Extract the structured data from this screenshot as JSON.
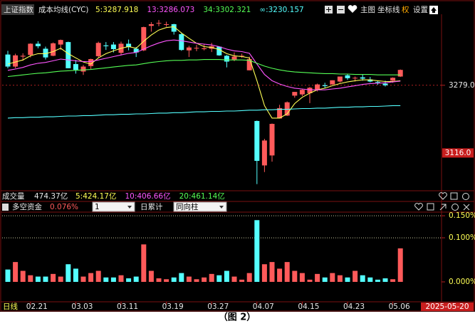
{
  "toolbar": {
    "symbol": "上证指数",
    "indicator": "成本均线(CYC)",
    "buttons": [
      "主图",
      "坐标线",
      "权",
      "设置"
    ]
  },
  "volume_header": {
    "title": "成交量",
    "total": "474.37亿",
    "averages": [
      {
        "label": "5:424.17亿",
        "color": "#ffff55"
      },
      {
        "label": "10:406.66亿",
        "color": "#ff55ff"
      },
      {
        "label": "20:461.14亿",
        "color": "#55ff55"
      }
    ]
  },
  "indicator_header": {
    "title": "多空资金",
    "value": "0.076%",
    "selects": [
      "1",
      "同向柱"
    ],
    "mode": "日累计"
  },
  "date_axis": {
    "period": "日线",
    "cursor_date": "2025-05-20"
  },
  "caption": "（图 2）",
  "chart_data": [
    {
      "type": "candlestick",
      "categories": [
        null,
        null,
        null,
        "02.21",
        null,
        null,
        null,
        null,
        null,
        "03.03",
        null,
        null,
        null,
        null,
        null,
        "03.11",
        null,
        null,
        null,
        null,
        null,
        "03.19",
        null,
        null,
        null,
        null,
        null,
        "03.27",
        null,
        null,
        null,
        null,
        null,
        "04.07",
        null,
        null,
        null,
        null,
        null,
        "04.15",
        null,
        null,
        null,
        null,
        null,
        "04.23",
        null,
        null,
        null,
        null,
        null,
        "05.06",
        null
      ],
      "open": [
        3353,
        3324,
        3348,
        3352,
        3379,
        3367,
        3350,
        3377,
        3383,
        3330,
        3312,
        3325,
        3349,
        3375,
        3377,
        3357,
        3379,
        3367,
        3363,
        3422,
        3428,
        3425,
        3426,
        3402,
        3363,
        3369,
        3366,
        3367,
        3372,
        3350,
        3341,
        3350,
        3315,
        3193,
        3086,
        3110,
        3199,
        3206,
        3254,
        3257,
        3260,
        3268,
        3279,
        3281,
        3288,
        3303,
        3297,
        3298,
        3293,
        3287,
        3283,
        3290,
        3300
      ],
      "high": [
        3362,
        3355,
        3356,
        3380,
        3385,
        3372,
        3382,
        3389,
        3384,
        3340,
        3328,
        3343,
        3384,
        3383,
        3383,
        3384,
        3389,
        3371,
        3420,
        3431,
        3436,
        3432,
        3427,
        3405,
        3374,
        3376,
        3378,
        3381,
        3373,
        3352,
        3358,
        3355,
        3348,
        3194,
        3150,
        3187,
        3232,
        3240,
        3263,
        3270,
        3275,
        3283,
        3285,
        3291,
        3300,
        3306,
        3300,
        3305,
        3299,
        3290,
        3290,
        3298,
        3317
      ],
      "low": [
        3320,
        3320,
        3338,
        3346,
        3368,
        3341,
        3349,
        3364,
        3320,
        3307,
        3304,
        3318,
        3346,
        3364,
        3358,
        3351,
        3363,
        3347,
        3361,
        3408,
        3421,
        3420,
        3401,
        3362,
        3347,
        3361,
        3363,
        3359,
        3350,
        3322,
        3337,
        3345,
        3315,
        3041,
        3070,
        3095,
        3199,
        3205,
        3249,
        3253,
        3236,
        3264,
        3273,
        3280,
        3285,
        3292,
        3288,
        3290,
        3286,
        3280,
        3276,
        3285,
        3299
      ],
      "close": [
        3324,
        3351,
        3350,
        3379,
        3373,
        3346,
        3380,
        3388,
        3320,
        3316,
        3324,
        3342,
        3381,
        3373,
        3366,
        3379,
        3371,
        3358,
        3419,
        3426,
        3429,
        3426,
        3408,
        3364,
        3370,
        3369,
        3368,
        3373,
        3351,
        3336,
        3348,
        3350,
        3342,
        3097,
        3146,
        3186,
        3224,
        3238,
        3263,
        3268,
        3273,
        3281,
        3277,
        3291,
        3300,
        3296,
        3297,
        3295,
        3288,
        3286,
        3279,
        3297,
        3316
      ],
      "up_color": "#ff5a5a",
      "down_color": "#54ffff",
      "ylim": [
        3025,
        3450
      ],
      "yticks": [
        {
          "value": 3279,
          "label": "3279.0"
        }
      ],
      "cursor_price": {
        "value": 3116,
        "label": "3116.0"
      },
      "series": [
        {
          "name": "5:3287.918",
          "color": "#ffff55",
          "values": [
            3330,
            3335,
            3340,
            3350,
            3355,
            3355,
            3360,
            3368,
            3355,
            3345,
            3335,
            3330,
            3345,
            3355,
            3362,
            3368,
            3372,
            3368,
            3385,
            3400,
            3412,
            3418,
            3420,
            3405,
            3392,
            3380,
            3372,
            3370,
            3365,
            3355,
            3350,
            3348,
            3345,
            3290,
            3230,
            3200,
            3200,
            3210,
            3235,
            3250,
            3260,
            3268,
            3272,
            3278,
            3283,
            3287,
            3290,
            3292,
            3292,
            3290,
            3288,
            3288,
            3290
          ]
        },
        {
          "name": "13:3286.073",
          "color": "#ff55ff",
          "values": [
            3315,
            3318,
            3322,
            3328,
            3332,
            3334,
            3338,
            3342,
            3340,
            3338,
            3336,
            3336,
            3340,
            3344,
            3348,
            3352,
            3356,
            3358,
            3366,
            3374,
            3381,
            3386,
            3388,
            3386,
            3383,
            3380,
            3378,
            3376,
            3372,
            3366,
            3362,
            3360,
            3356,
            3330,
            3305,
            3290,
            3282,
            3276,
            3272,
            3270,
            3268,
            3268,
            3268,
            3270,
            3272,
            3275,
            3278,
            3281,
            3283,
            3284,
            3285,
            3287,
            3289
          ]
        },
        {
          "name": "34:3302.321",
          "color": "#55ff55",
          "values": [
            3300,
            3302,
            3304,
            3306,
            3308,
            3309,
            3311,
            3313,
            3314,
            3315,
            3316,
            3317,
            3319,
            3321,
            3323,
            3325,
            3327,
            3328,
            3331,
            3334,
            3336,
            3338,
            3339,
            3339,
            3340,
            3340,
            3341,
            3341,
            3341,
            3340,
            3340,
            3340,
            3339,
            3332,
            3325,
            3320,
            3316,
            3313,
            3311,
            3310,
            3309,
            3308,
            3307,
            3307,
            3306,
            3306,
            3305,
            3305,
            3305,
            3304,
            3304,
            3304,
            3304
          ]
        },
        {
          "name": "∞:3230.157",
          "color": "#54ffff",
          "values": [
            3200,
            3201,
            3201,
            3202,
            3202,
            3203,
            3203,
            3204,
            3205,
            3205,
            3206,
            3206,
            3207,
            3208,
            3208,
            3209,
            3209,
            3210,
            3210,
            3211,
            3212,
            3212,
            3213,
            3213,
            3214,
            3215,
            3215,
            3216,
            3216,
            3217,
            3217,
            3218,
            3219,
            3219,
            3220,
            3220,
            3221,
            3221,
            3222,
            3223,
            3223,
            3224,
            3224,
            3225,
            3226,
            3226,
            3227,
            3227,
            3228,
            3228,
            3229,
            3230,
            3230
          ]
        }
      ]
    },
    {
      "type": "bar",
      "values": [
        0.028,
        0.045,
        0.025,
        0.015,
        0.012,
        0.012,
        0.018,
        0.012,
        0.04,
        0.03,
        0.012,
        0.02,
        0.025,
        0.01,
        0.01,
        0.015,
        0.008,
        0.012,
        0.085,
        0.025,
        0.008,
        0.006,
        0.01,
        0.02,
        0.012,
        0.006,
        0.01,
        0.018,
        0.015,
        0.025,
        0.012,
        0.005,
        0.02,
        0.14,
        0.04,
        0.045,
        0.03,
        0.045,
        0.025,
        0.02,
        0.005,
        0.018,
        0.01,
        0.02,
        0.015,
        0.01,
        0.025,
        0.015,
        0.01,
        0.005,
        0.008,
        0.006,
        0.076
      ],
      "ylim": [
        0,
        0.155
      ],
      "yticks": [
        {
          "value": 0.15,
          "label": "0.150%"
        },
        {
          "value": 0.1,
          "label": "0.100%"
        },
        {
          "value": 0,
          "label": "0.000%"
        }
      ]
    }
  ]
}
